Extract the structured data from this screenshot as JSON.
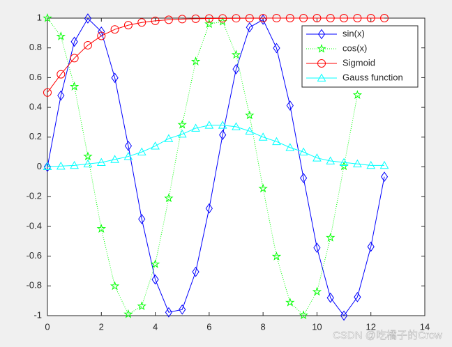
{
  "chart_data": {
    "type": "line",
    "x": [
      0,
      0.5,
      1,
      1.5,
      2,
      2.5,
      3,
      3.5,
      4,
      4.5,
      5,
      5.5,
      6,
      6.5,
      7,
      7.5,
      8,
      8.5,
      9,
      9.5,
      10,
      10.5,
      11,
      11.5,
      12,
      12.5
    ],
    "series": [
      {
        "name": "sin(x)",
        "color": "#0000ff",
        "marker": "diamond",
        "line_style": "solid",
        "values": [
          0,
          0.4794,
          0.8415,
          0.9975,
          0.9093,
          0.5985,
          0.1411,
          -0.3508,
          -0.7568,
          -0.9775,
          -0.9589,
          -0.7055,
          -0.2794,
          0.2151,
          0.657,
          0.938,
          0.9894,
          0.7985,
          0.4121,
          -0.0752,
          -0.544,
          -0.8797,
          -1.0,
          -0.8755,
          -0.5366,
          -0.0663
        ]
      },
      {
        "name": "cos(x)",
        "color": "#00ff00",
        "marker": "pentagram",
        "line_style": "dotted",
        "values": [
          1,
          0.8776,
          0.5403,
          0.0707,
          -0.4161,
          -0.8011,
          -0.99,
          -0.9365,
          -0.6536,
          -0.2108,
          0.2837,
          0.7087,
          0.9602,
          0.9766,
          0.7539,
          0.3466,
          -0.1455,
          -0.602,
          -0.9111,
          -0.9972,
          -0.8391,
          -0.4755,
          0.0044,
          0.4833,
          null,
          null
        ]
      },
      {
        "name": "Sigmoid",
        "color": "#ff0000",
        "marker": "circle",
        "line_style": "solid",
        "values": [
          0.5,
          0.6225,
          0.7311,
          0.8176,
          0.8808,
          0.9241,
          0.9526,
          0.9707,
          0.982,
          0.989,
          0.9933,
          0.9959,
          0.9975,
          0.9985,
          0.9991,
          0.9994,
          0.9997,
          0.9998,
          0.9999,
          0.9999,
          1.0,
          1.0,
          1.0,
          1.0,
          1.0,
          1.0
        ]
      },
      {
        "name": "Gauss function",
        "color": "#00ffff",
        "marker": "triangle",
        "line_style": "solid",
        "values": [
          0.002,
          0.005,
          0.01,
          0.02,
          0.03,
          0.05,
          0.07,
          0.1,
          0.14,
          0.19,
          0.22,
          0.26,
          0.28,
          0.28,
          0.27,
          0.24,
          0.2,
          0.17,
          0.13,
          0.1,
          0.06,
          0.04,
          0.03,
          0.02,
          0.01,
          0.01
        ]
      }
    ],
    "xlim": [
      0,
      14
    ],
    "xticks": [
      0,
      2,
      4,
      6,
      8,
      10,
      12,
      14
    ],
    "ylim": [
      -1,
      1
    ],
    "yticks": [
      -1,
      -0.8,
      -0.6,
      -0.4,
      -0.2,
      0,
      0.2,
      0.4,
      0.6,
      0.8,
      1
    ],
    "legend": "top-right",
    "grid": false,
    "watermark": "CSDN @吃橘子的Crow"
  }
}
